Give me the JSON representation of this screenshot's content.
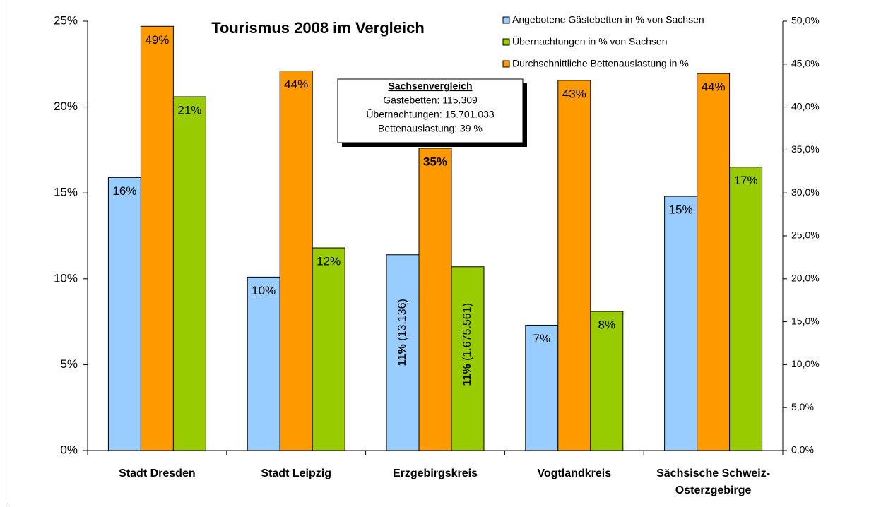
{
  "chart_data": {
    "type": "bar",
    "title": "Tourismus 2008 im Vergleich",
    "categories": [
      "Stadt Dresden",
      "Stadt Leipzig",
      "Erzgebirgskreis",
      "Vogtlandkreis",
      "Sächsische Schweiz-Osterzgebirge"
    ],
    "series": [
      {
        "name": "Angebotene Gästebetten in % von Sachsen",
        "color": "#99ccff",
        "values": [
          15.9,
          10.1,
          11.4,
          7.3,
          14.8
        ],
        "value_labels": [
          "16%",
          "10%",
          "11% (13.136)",
          "7%",
          "15%"
        ]
      },
      {
        "name": "Durchschnittliche Bettenauslastung in %",
        "color": "#ff9900",
        "axis": "y2",
        "values": [
          49.4,
          44.2,
          35.2,
          43.1,
          43.9
        ],
        "value_labels": [
          "49%",
          "44%",
          "35%",
          "43%",
          "44%"
        ]
      },
      {
        "name": "Übernachtungen in % von Sachsen",
        "color": "#99cc00",
        "values": [
          20.6,
          11.8,
          10.7,
          8.1,
          16.5
        ],
        "value_labels": [
          "21%",
          "12%",
          "11% (1.675.561)",
          "8%",
          "17%"
        ]
      }
    ],
    "ylim": [
      0,
      25
    ],
    "yticks": [
      {
        "value": 0,
        "label": "0%"
      },
      {
        "value": 5,
        "label": "5%"
      },
      {
        "value": 10,
        "label": "10%"
      },
      {
        "value": 15,
        "label": "15%"
      },
      {
        "value": 20,
        "label": "20%"
      },
      {
        "value": 25,
        "label": "25%"
      }
    ],
    "y2lim": [
      0,
      50
    ],
    "y2ticks": [
      {
        "value": 0,
        "label": "0,0%"
      },
      {
        "value": 5,
        "label": "5,0%"
      },
      {
        "value": 10,
        "label": "10,0%"
      },
      {
        "value": 15,
        "label": "15,0%"
      },
      {
        "value": 20,
        "label": "20,0%"
      },
      {
        "value": 25,
        "label": "25,0%"
      },
      {
        "value": 30,
        "label": "30,0%"
      },
      {
        "value": 35,
        "label": "35,0%"
      },
      {
        "value": 40,
        "label": "40,0%"
      },
      {
        "value": 45,
        "label": "45,0%"
      },
      {
        "value": 50,
        "label": "50,0%"
      }
    ],
    "annotation": {
      "title": "Sachsenvergleich",
      "lines": [
        "Gästebetten: 115.309",
        "Übernachtungen: 15.701.033",
        "Bettenauslastung: 39 %"
      ]
    },
    "legend_order": [
      0,
      2,
      1
    ],
    "grid": false
  }
}
